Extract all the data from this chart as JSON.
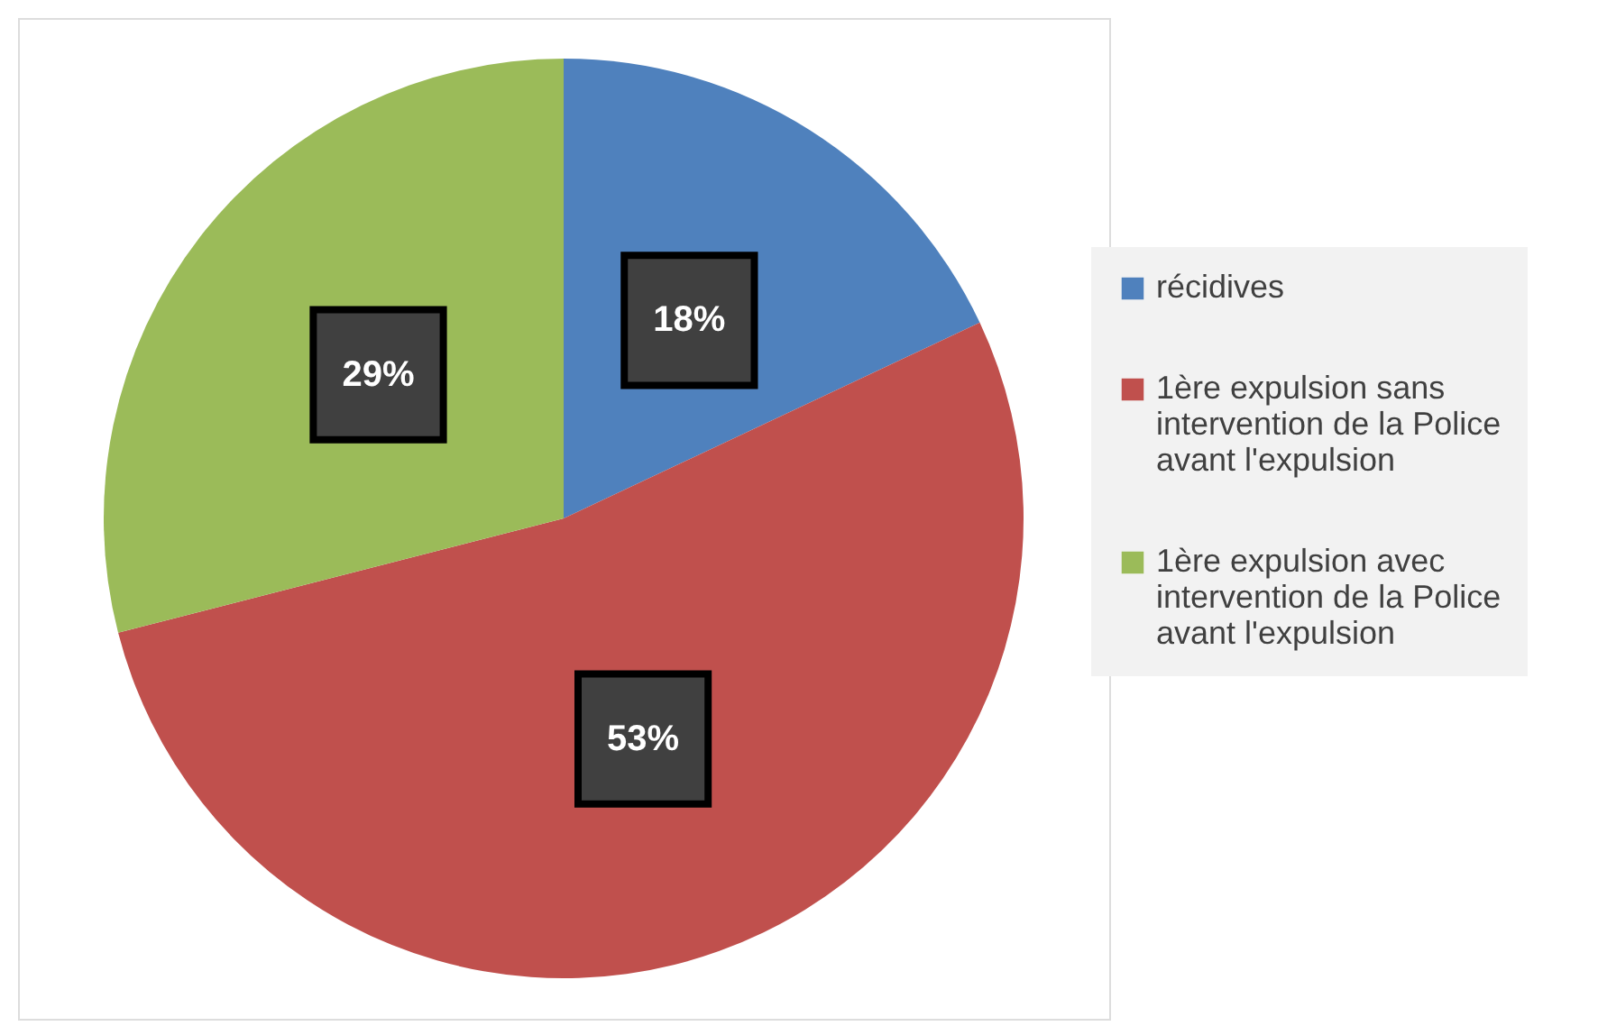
{
  "chart_data": {
    "type": "pie",
    "categories": [
      "récidives",
      "1ère expulsion sans intervention de la Police avant l'expulsion",
      "1ère expulsion avec intervention de la Police avant l'expulsion"
    ],
    "values": [
      18,
      53,
      29
    ],
    "colors": [
      "#4f81bd",
      "#c0504d",
      "#9bbb59"
    ],
    "value_labels": [
      "18%",
      "53%",
      "29%"
    ],
    "legend": "right"
  }
}
